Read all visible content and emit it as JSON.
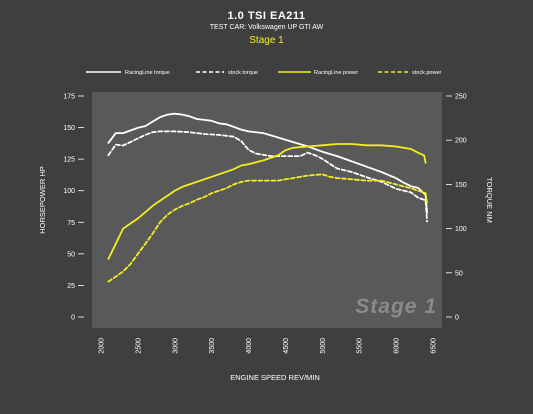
{
  "header": {
    "title": "1.0 TSI EA211",
    "subtitle": "TEST CAR: Volkswagen UP GTI AW",
    "stage_label": "Stage 1"
  },
  "watermark": "Stage 1",
  "colors": {
    "background": "#3f3f3f",
    "plot_area": "#595959",
    "racingline_torque": "#ffffff",
    "stock_torque": "#ffffff",
    "racingline_power": "#f4ee1f",
    "stock_power": "#f4ee1f",
    "stage_label": "#f4ee1f"
  },
  "chart_data": {
    "type": "line",
    "title": "1.0 TSI EA211",
    "xlabel": "ENGINE SPEED REV/MIN",
    "ylabel_left": "HORSEPOWER HP",
    "ylabel_right": "TORQUE NM",
    "xlim": [
      2000,
      6500
    ],
    "xticks": [
      2000,
      2500,
      3000,
      3500,
      4000,
      4500,
      5000,
      5500,
      6000,
      6500
    ],
    "ylim_left": [
      0,
      175
    ],
    "yticks_left": [
      0,
      25,
      50,
      75,
      100,
      125,
      150,
      175
    ],
    "ylim_right": [
      0,
      250
    ],
    "yticks_right": [
      0,
      50,
      100,
      150,
      200,
      250
    ],
    "grid": false,
    "legend_position": "top",
    "series": [
      {
        "name": "RacingLine torque",
        "axis": "right",
        "style": "solid",
        "color": "#ffffff",
        "points": [
          [
            2100,
            197
          ],
          [
            2200,
            208
          ],
          [
            2300,
            208
          ],
          [
            2400,
            211
          ],
          [
            2500,
            214
          ],
          [
            2600,
            216
          ],
          [
            2700,
            221
          ],
          [
            2800,
            226
          ],
          [
            2900,
            229
          ],
          [
            3000,
            230
          ],
          [
            3100,
            229
          ],
          [
            3200,
            227
          ],
          [
            3300,
            224
          ],
          [
            3400,
            223
          ],
          [
            3500,
            222
          ],
          [
            3600,
            219
          ],
          [
            3700,
            218
          ],
          [
            3800,
            215
          ],
          [
            3900,
            212
          ],
          [
            4000,
            210
          ],
          [
            4200,
            208
          ],
          [
            4400,
            203
          ],
          [
            4600,
            198
          ],
          [
            4800,
            193
          ],
          [
            5000,
            187
          ],
          [
            5200,
            182
          ],
          [
            5400,
            176
          ],
          [
            5600,
            170
          ],
          [
            5800,
            164
          ],
          [
            6000,
            157
          ],
          [
            6100,
            152
          ],
          [
            6200,
            148
          ],
          [
            6300,
            146
          ],
          [
            6400,
            138
          ],
          [
            6420,
            118
          ]
        ]
      },
      {
        "name": "stock torque",
        "axis": "right",
        "style": "dashed",
        "color": "#ffffff",
        "points": [
          [
            2100,
            183
          ],
          [
            2200,
            195
          ],
          [
            2300,
            194
          ],
          [
            2400,
            198
          ],
          [
            2500,
            202
          ],
          [
            2600,
            206
          ],
          [
            2700,
            209
          ],
          [
            2800,
            210
          ],
          [
            3000,
            210
          ],
          [
            3200,
            209
          ],
          [
            3400,
            207
          ],
          [
            3600,
            206
          ],
          [
            3800,
            204
          ],
          [
            3900,
            199
          ],
          [
            4000,
            189
          ],
          [
            4100,
            185
          ],
          [
            4300,
            182
          ],
          [
            4500,
            182
          ],
          [
            4700,
            182
          ],
          [
            4800,
            186
          ],
          [
            4900,
            183
          ],
          [
            5000,
            179
          ],
          [
            5200,
            168
          ],
          [
            5400,
            164
          ],
          [
            5600,
            158
          ],
          [
            5800,
            153
          ],
          [
            6000,
            145
          ],
          [
            6200,
            141
          ],
          [
            6300,
            135
          ],
          [
            6400,
            132
          ],
          [
            6420,
            108
          ]
        ]
      },
      {
        "name": "RacingLine power",
        "axis": "left",
        "style": "solid",
        "color": "#f4ee1f",
        "points": [
          [
            2100,
            46
          ],
          [
            2150,
            52
          ],
          [
            2200,
            58
          ],
          [
            2250,
            64
          ],
          [
            2300,
            70
          ],
          [
            2400,
            74
          ],
          [
            2500,
            78
          ],
          [
            2600,
            83
          ],
          [
            2700,
            88
          ],
          [
            2800,
            92
          ],
          [
            2900,
            96
          ],
          [
            3000,
            100
          ],
          [
            3100,
            103
          ],
          [
            3200,
            105
          ],
          [
            3400,
            109
          ],
          [
            3600,
            113
          ],
          [
            3800,
            117
          ],
          [
            3900,
            120
          ],
          [
            4000,
            121
          ],
          [
            4200,
            124
          ],
          [
            4400,
            128
          ],
          [
            4500,
            132
          ],
          [
            4600,
            134
          ],
          [
            4800,
            135
          ],
          [
            5000,
            136
          ],
          [
            5200,
            137
          ],
          [
            5400,
            137
          ],
          [
            5600,
            136
          ],
          [
            5800,
            136
          ],
          [
            6000,
            135
          ],
          [
            6200,
            133
          ],
          [
            6300,
            130
          ],
          [
            6380,
            128
          ],
          [
            6400,
            122
          ]
        ]
      },
      {
        "name": "stock power",
        "axis": "left",
        "style": "dashed",
        "color": "#f4ee1f",
        "points": [
          [
            2100,
            28
          ],
          [
            2200,
            32
          ],
          [
            2300,
            36
          ],
          [
            2400,
            42
          ],
          [
            2500,
            50
          ],
          [
            2600,
            58
          ],
          [
            2700,
            66
          ],
          [
            2800,
            75
          ],
          [
            2900,
            81
          ],
          [
            3000,
            85
          ],
          [
            3100,
            88
          ],
          [
            3200,
            90
          ],
          [
            3300,
            93
          ],
          [
            3400,
            95
          ],
          [
            3500,
            98
          ],
          [
            3600,
            100
          ],
          [
            3700,
            102
          ],
          [
            3800,
            105
          ],
          [
            3900,
            107
          ],
          [
            4000,
            108
          ],
          [
            4200,
            108
          ],
          [
            4400,
            108
          ],
          [
            4600,
            110
          ],
          [
            4800,
            112
          ],
          [
            5000,
            113
          ],
          [
            5100,
            111
          ],
          [
            5200,
            110
          ],
          [
            5400,
            109
          ],
          [
            5600,
            108
          ],
          [
            5800,
            108
          ],
          [
            6000,
            105
          ],
          [
            6200,
            102
          ],
          [
            6300,
            100
          ],
          [
            6400,
            98
          ],
          [
            6420,
            90
          ]
        ]
      }
    ]
  }
}
